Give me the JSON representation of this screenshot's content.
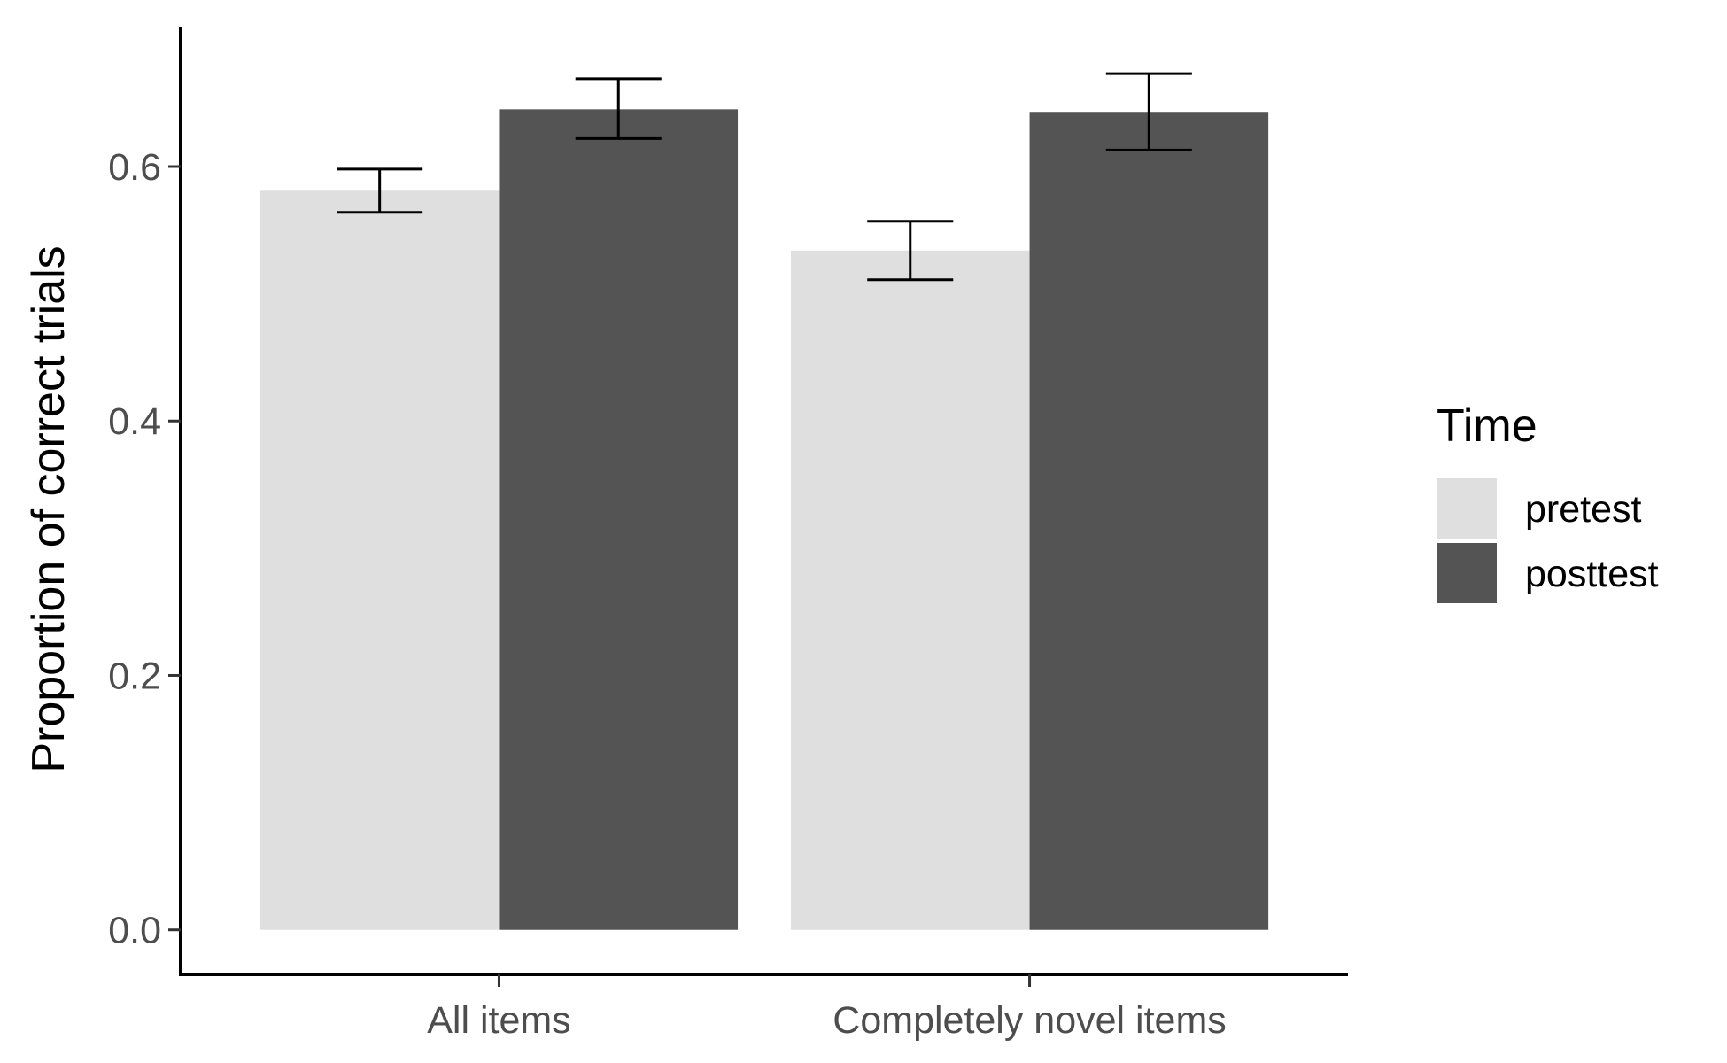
{
  "chart_data": {
    "type": "bar",
    "categories": [
      "All items",
      "Completely novel items"
    ],
    "series": [
      {
        "name": "pretest",
        "color": "#dfdfdf",
        "values": [
          0.581,
          0.534
        ],
        "error_low": [
          0.564,
          0.511
        ],
        "error_high": [
          0.598,
          0.557
        ]
      },
      {
        "name": "posttest",
        "color": "#545454",
        "values": [
          0.645,
          0.643
        ],
        "error_low": [
          0.622,
          0.613
        ],
        "error_high": [
          0.669,
          0.673
        ]
      }
    ],
    "xlabel": "",
    "ylabel": "Proportion of correct trials",
    "ylim": [
      -0.035,
      0.71
    ],
    "yticks": [
      0.0,
      0.2,
      0.4,
      0.6
    ],
    "ytick_labels": [
      "0.0",
      "0.2",
      "0.4",
      "0.6"
    ],
    "legend": {
      "title": "Time",
      "position": "right"
    },
    "grid": false
  }
}
